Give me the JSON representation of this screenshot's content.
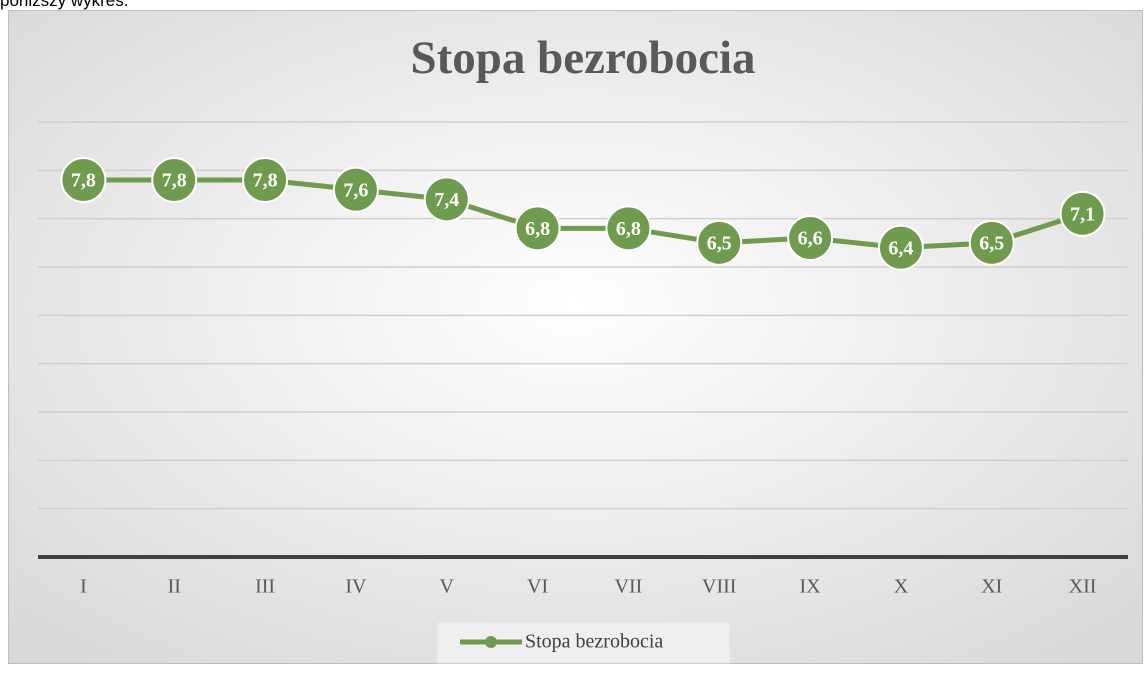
{
  "intro_text": "poniższy wykres.",
  "chart_data": {
    "type": "line",
    "title": "Stopa bezrobocia",
    "categories": [
      "I",
      "II",
      "III",
      "IV",
      "V",
      "VI",
      "VII",
      "VIII",
      "IX",
      "X",
      "XI",
      "XII"
    ],
    "series": [
      {
        "name": "Stopa bezrobocia",
        "color": "#6f9b4e",
        "values": [
          7.8,
          7.8,
          7.8,
          7.6,
          7.4,
          6.8,
          6.8,
          6.5,
          6.6,
          6.4,
          6.5,
          7.1
        ],
        "value_labels": [
          "7,8",
          "7,8",
          "7,8",
          "7,6",
          "7,4",
          "6,8",
          "6,8",
          "6,5",
          "6,6",
          "6,4",
          "6,5",
          "7,1"
        ]
      }
    ],
    "ylim": [
      0,
      9
    ],
    "yticks": [
      0,
      1,
      2,
      3,
      4,
      5,
      6,
      7,
      8,
      9
    ],
    "grid": true,
    "legend": "bottom"
  }
}
